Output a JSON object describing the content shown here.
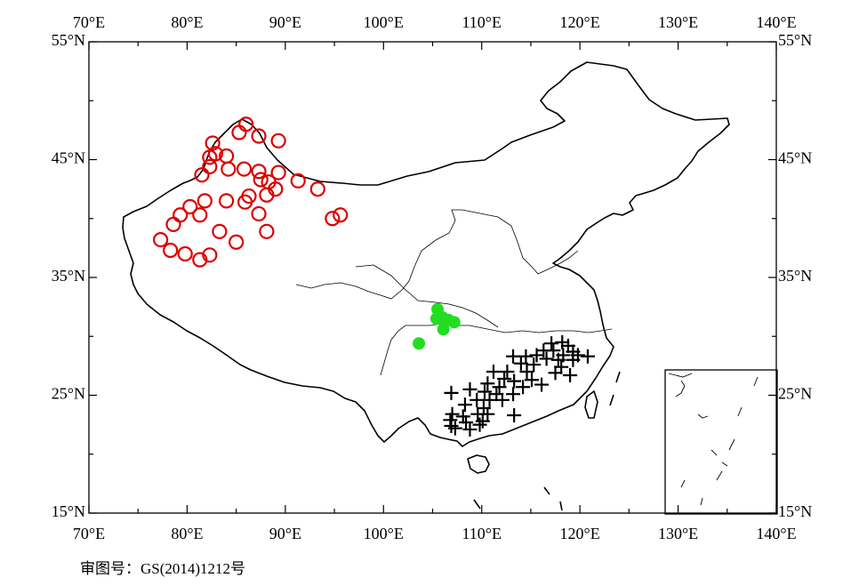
{
  "map": {
    "lon_range": [
      70,
      140
    ],
    "lat_range": [
      15,
      55
    ],
    "x_ticks": [
      {
        "lon": 70,
        "label": "70°E"
      },
      {
        "lon": 80,
        "label": "80°E"
      },
      {
        "lon": 90,
        "label": "90°E"
      },
      {
        "lon": 100,
        "label": "100°E"
      },
      {
        "lon": 110,
        "label": "110°E"
      },
      {
        "lon": 120,
        "label": "120°E"
      },
      {
        "lon": 130,
        "label": "130°E"
      },
      {
        "lon": 140,
        "label": "140°E"
      }
    ],
    "y_ticks": [
      {
        "lat": 55,
        "label": "55°N"
      },
      {
        "lat": 45,
        "label": "45°N"
      },
      {
        "lat": 35,
        "label": "35°N"
      },
      {
        "lat": 25,
        "label": "25°N"
      },
      {
        "lat": 15,
        "label": "15°N"
      }
    ],
    "caption": "审图号：GS(2014)1212号",
    "colors": {
      "open_circle": "#dd0000",
      "filled_circle": "#22dd22",
      "cross": "#000000",
      "outline": "#000000"
    }
  },
  "chart_data": {
    "type": "scatter",
    "series": [
      {
        "marker": "open-circle",
        "points": [
          [
            86.0,
            48.0
          ],
          [
            85.3,
            47.3
          ],
          [
            87.3,
            47.0
          ],
          [
            89.3,
            46.6
          ],
          [
            82.6,
            46.4
          ],
          [
            82.9,
            45.5
          ],
          [
            82.3,
            45.2
          ],
          [
            84.0,
            45.3
          ],
          [
            82.3,
            44.4
          ],
          [
            84.2,
            44.2
          ],
          [
            85.8,
            44.2
          ],
          [
            87.3,
            44.0
          ],
          [
            89.3,
            43.9
          ],
          [
            81.5,
            43.7
          ],
          [
            87.5,
            43.3
          ],
          [
            88.3,
            43.1
          ],
          [
            91.3,
            43.2
          ],
          [
            93.3,
            42.5
          ],
          [
            86.3,
            41.9
          ],
          [
            88.1,
            42.0
          ],
          [
            89.0,
            42.5
          ],
          [
            81.8,
            41.5
          ],
          [
            84.0,
            41.5
          ],
          [
            85.9,
            41.4
          ],
          [
            80.3,
            41.0
          ],
          [
            87.3,
            40.4
          ],
          [
            79.3,
            40.3
          ],
          [
            81.3,
            40.3
          ],
          [
            94.8,
            40.0
          ],
          [
            95.6,
            40.3
          ],
          [
            78.6,
            39.5
          ],
          [
            83.3,
            38.9
          ],
          [
            88.1,
            38.9
          ],
          [
            77.3,
            38.2
          ],
          [
            85.0,
            38.0
          ],
          [
            78.3,
            37.3
          ],
          [
            79.8,
            37.0
          ],
          [
            82.3,
            36.9
          ],
          [
            81.3,
            36.5
          ]
        ]
      },
      {
        "marker": "filled-circle",
        "points": [
          [
            105.5,
            32.3
          ],
          [
            105.4,
            31.5
          ],
          [
            106.0,
            31.6
          ],
          [
            106.6,
            31.4
          ],
          [
            107.2,
            31.2
          ],
          [
            106.1,
            30.6
          ],
          [
            103.6,
            29.4
          ]
        ]
      },
      {
        "marker": "cross",
        "points": [
          [
            117.1,
            29.4
          ],
          [
            118.2,
            29.5
          ],
          [
            118.8,
            29.2
          ],
          [
            116.3,
            28.8
          ],
          [
            117.3,
            28.8
          ],
          [
            119.3,
            28.7
          ],
          [
            113.2,
            28.3
          ],
          [
            114.5,
            28.3
          ],
          [
            115.6,
            28.4
          ],
          [
            118.3,
            28.4
          ],
          [
            119.8,
            28.4
          ],
          [
            120.8,
            28.3
          ],
          [
            116.6,
            28.1
          ],
          [
            117.8,
            28.0
          ],
          [
            119.3,
            28.0
          ],
          [
            114.0,
            27.7
          ],
          [
            115.3,
            27.6
          ],
          [
            118.1,
            27.4
          ],
          [
            111.2,
            27.0
          ],
          [
            112.6,
            27.0
          ],
          [
            114.6,
            27.0
          ],
          [
            117.5,
            26.9
          ],
          [
            119.0,
            26.7
          ],
          [
            112.3,
            26.4
          ],
          [
            113.3,
            26.2
          ],
          [
            115.1,
            26.3
          ],
          [
            110.6,
            26.0
          ],
          [
            111.8,
            25.7
          ],
          [
            114.2,
            25.7
          ],
          [
            116.1,
            25.9
          ],
          [
            108.8,
            25.5
          ],
          [
            110.3,
            25.3
          ],
          [
            111.5,
            25.1
          ],
          [
            113.2,
            25.1
          ],
          [
            106.9,
            25.2
          ],
          [
            109.5,
            24.6
          ],
          [
            110.8,
            24.6
          ],
          [
            112.1,
            24.6
          ],
          [
            108.3,
            24.2
          ],
          [
            110.2,
            23.9
          ],
          [
            113.3,
            23.3
          ],
          [
            107.0,
            23.4
          ],
          [
            108.1,
            23.2
          ],
          [
            109.6,
            23.4
          ],
          [
            110.6,
            23.4
          ],
          [
            106.8,
            22.9
          ],
          [
            108.4,
            22.7
          ],
          [
            110.1,
            22.8
          ],
          [
            107.3,
            22.2
          ],
          [
            108.8,
            22.1
          ],
          [
            109.8,
            22.5
          ],
          [
            106.9,
            22.4
          ]
        ]
      }
    ]
  }
}
